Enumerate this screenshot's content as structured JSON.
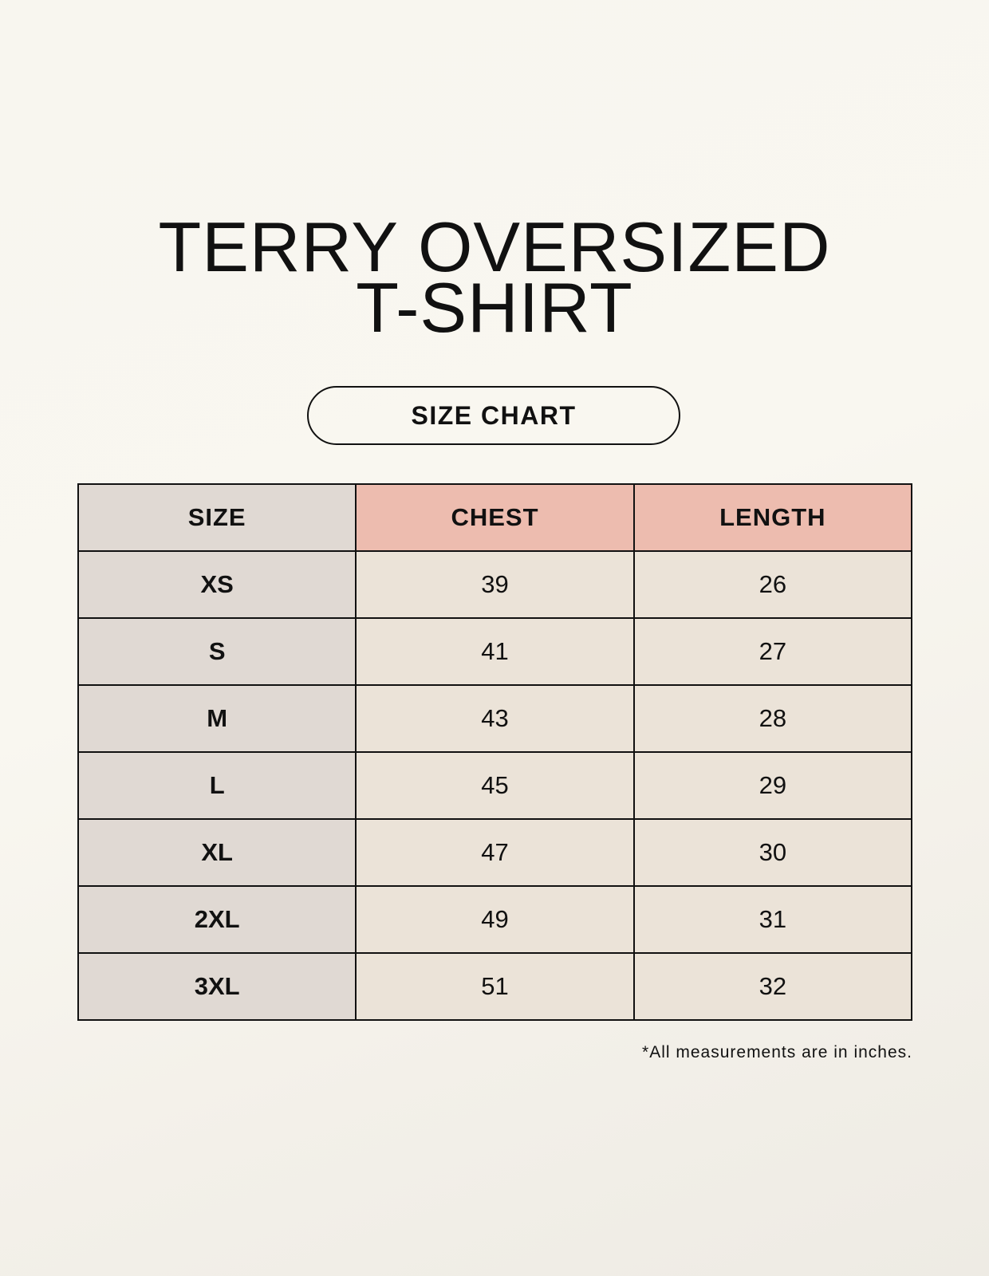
{
  "title_lines": [
    "TERRY OVERSIZED",
    "T-SHIRT"
  ],
  "badge": "SIZE CHART",
  "table": {
    "headers": [
      "SIZE",
      "CHEST",
      "LENGTH"
    ],
    "rows": [
      [
        "XS",
        "39",
        "26"
      ],
      [
        "S",
        "41",
        "27"
      ],
      [
        "M",
        "43",
        "28"
      ],
      [
        "L",
        "45",
        "29"
      ],
      [
        "XL",
        "47",
        "30"
      ],
      [
        "2XL",
        "49",
        "31"
      ],
      [
        "3XL",
        "51",
        "32"
      ]
    ]
  },
  "footnote": "*All measurements are in inches.",
  "colors": {
    "size_column": "#e0d9d3",
    "header_accent": "#edbcaf",
    "cell": "#ebe3d8"
  }
}
